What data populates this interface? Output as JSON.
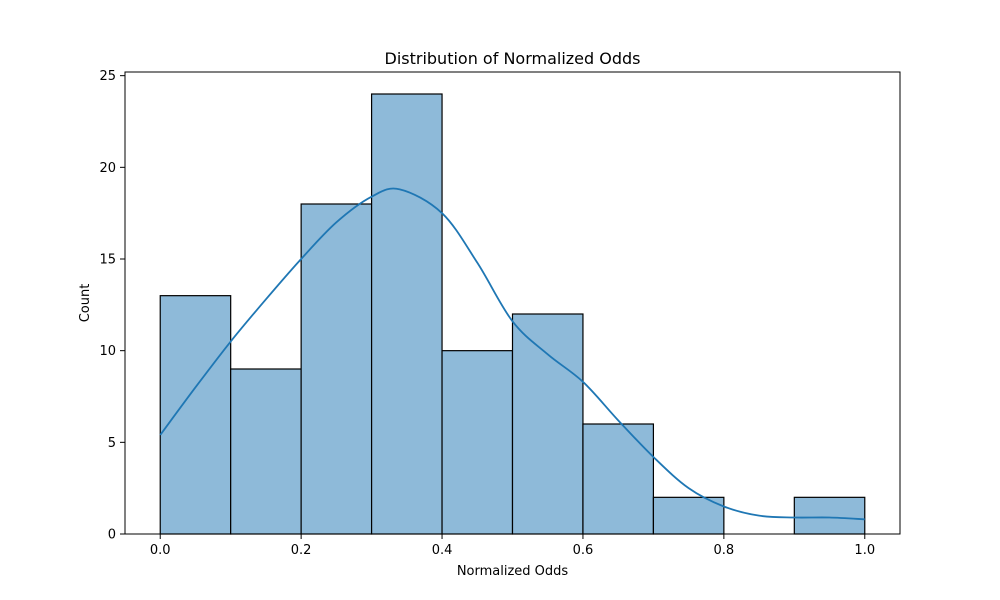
{
  "chart_data": {
    "type": "bar",
    "title": "Distribution of Normalized Odds",
    "xlabel": "Normalized Odds",
    "ylabel": "Count",
    "bins": [
      {
        "start": 0.0,
        "end": 0.1,
        "count": 13
      },
      {
        "start": 0.1,
        "end": 0.2,
        "count": 9
      },
      {
        "start": 0.2,
        "end": 0.3,
        "count": 18
      },
      {
        "start": 0.3,
        "end": 0.4,
        "count": 24
      },
      {
        "start": 0.4,
        "end": 0.5,
        "count": 10
      },
      {
        "start": 0.5,
        "end": 0.6,
        "count": 12
      },
      {
        "start": 0.6,
        "end": 0.7,
        "count": 6
      },
      {
        "start": 0.7,
        "end": 0.8,
        "count": 2
      },
      {
        "start": 0.8,
        "end": 0.9,
        "count": 0
      },
      {
        "start": 0.9,
        "end": 1.0,
        "count": 2
      }
    ],
    "kde": {
      "x": [
        0.0,
        0.05,
        0.1,
        0.15,
        0.2,
        0.25,
        0.3,
        0.34,
        0.4,
        0.45,
        0.5,
        0.55,
        0.6,
        0.65,
        0.7,
        0.75,
        0.8,
        0.85,
        0.9,
        0.95,
        1.0
      ],
      "y": [
        5.4,
        8.0,
        10.5,
        12.8,
        15.0,
        17.0,
        18.4,
        18.8,
        17.5,
        14.8,
        11.6,
        9.8,
        8.3,
        6.2,
        4.2,
        2.5,
        1.5,
        1.0,
        0.9,
        0.9,
        0.8
      ]
    },
    "xlim": [
      -0.05,
      1.05
    ],
    "ylim": [
      0,
      25.2
    ],
    "xticks": [
      0.0,
      0.2,
      0.4,
      0.6,
      0.8,
      1.0
    ],
    "xtick_labels": [
      "0.0",
      "0.2",
      "0.4",
      "0.6",
      "0.8",
      "1.0"
    ],
    "yticks": [
      0,
      5,
      10,
      15,
      20,
      25
    ],
    "ytick_labels": [
      "0",
      "5",
      "10",
      "15",
      "20",
      "25"
    ],
    "grid": false,
    "colors": {
      "bar_fill": "#8ebad9",
      "bar_edge": "#000000",
      "kde_line": "#1f77b4"
    }
  }
}
